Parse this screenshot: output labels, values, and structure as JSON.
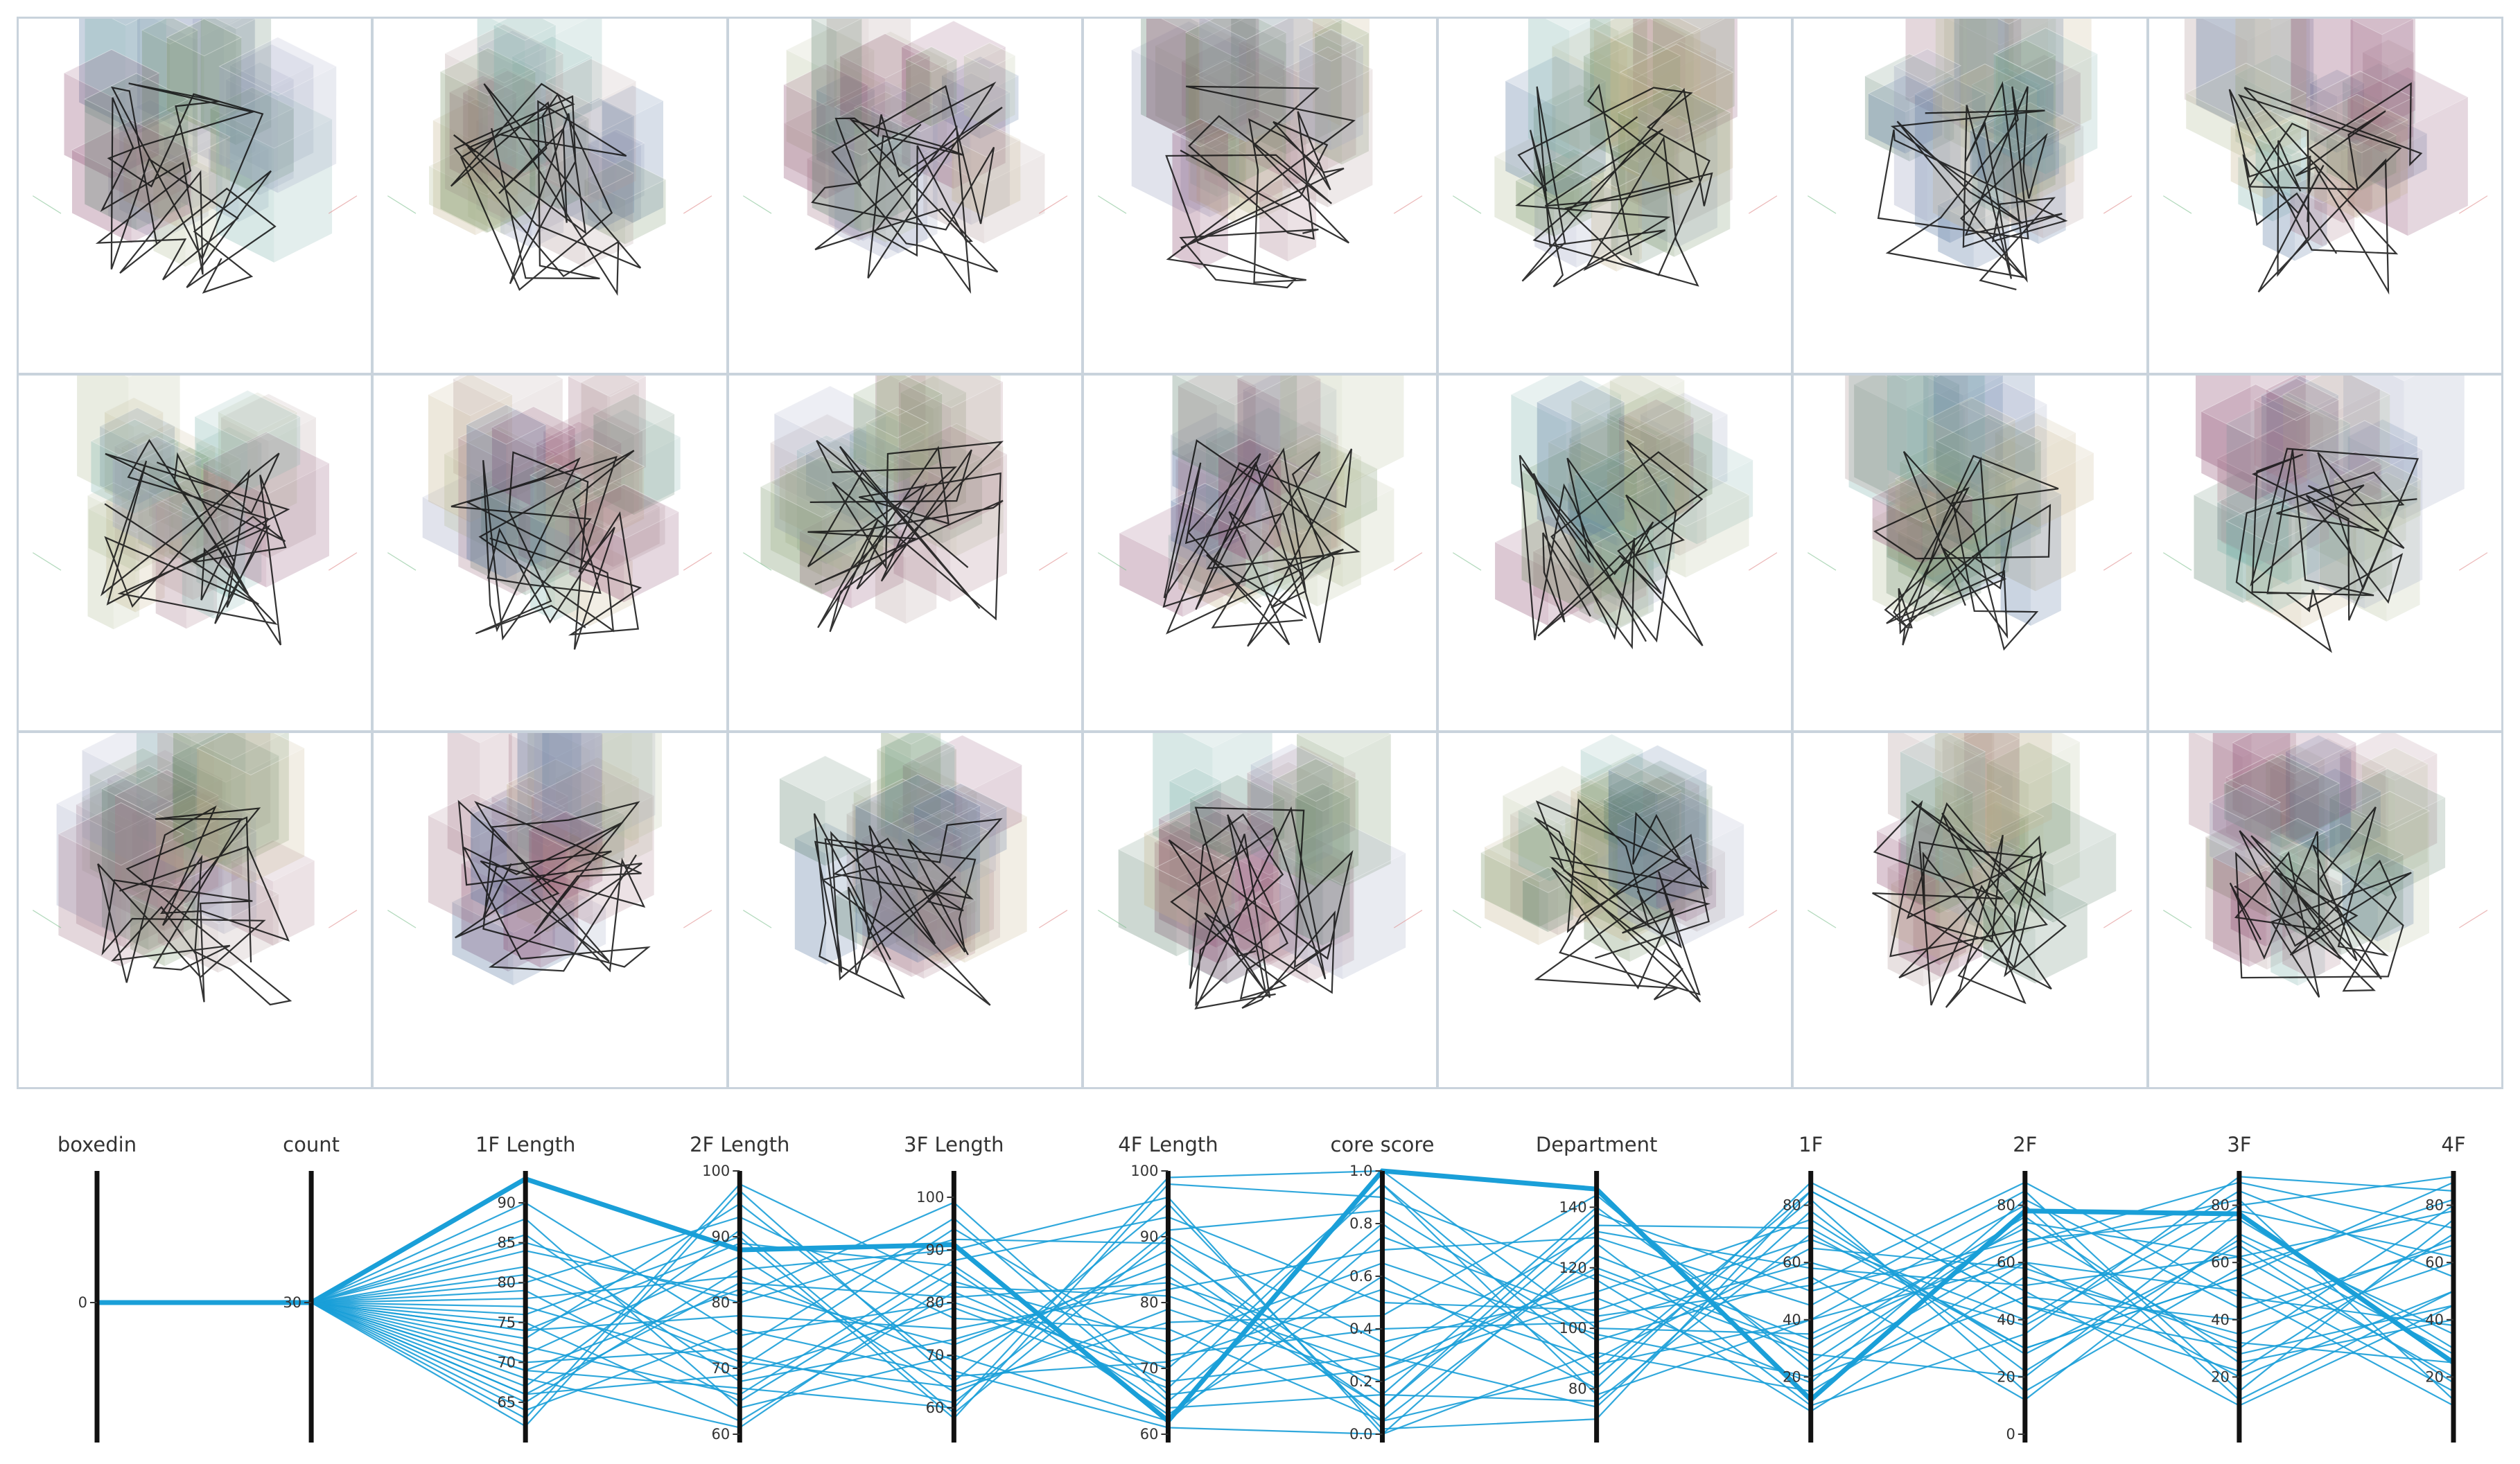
{
  "thumbnail_grid": {
    "rows": 3,
    "columns": 7,
    "count": 21
  },
  "chart_data": {
    "type": "parallel-coordinates",
    "line_color": "#1a9fd8",
    "axes": [
      {
        "name": "boxedin",
        "min": -1,
        "max": 1,
        "ticks": [
          0
        ],
        "tick_labels": [
          "0"
        ]
      },
      {
        "name": "count",
        "min": 29,
        "max": 31,
        "ticks": [
          30
        ],
        "tick_labels": [
          "30"
        ]
      },
      {
        "name": "1F Length",
        "min": 61,
        "max": 94,
        "ticks": [
          65,
          70,
          75,
          80,
          85,
          90
        ],
        "tick_labels": [
          "65",
          "70",
          "75",
          "80",
          "85",
          "90"
        ]
      },
      {
        "name": "2F Length",
        "min": 60,
        "max": 100,
        "ticks": [
          60,
          70,
          80,
          90,
          100
        ],
        "tick_labels": [
          "60",
          "70",
          "80",
          "90",
          "100"
        ]
      },
      {
        "name": "3F Length",
        "min": 55,
        "max": 105,
        "ticks": [
          60,
          70,
          80,
          90,
          100
        ],
        "tick_labels": [
          "60",
          "70",
          "80",
          "90",
          "100"
        ]
      },
      {
        "name": "4F Length",
        "min": 60,
        "max": 100,
        "ticks": [
          60,
          70,
          80,
          90,
          100
        ],
        "tick_labels": [
          "60",
          "70",
          "80",
          "90",
          "100"
        ]
      },
      {
        "name": "core score",
        "min": 0,
        "max": 1,
        "ticks": [
          0,
          0.2,
          0.4,
          0.6,
          0.8,
          1
        ],
        "tick_labels": [
          "0.0",
          "0.2",
          "0.4",
          "0.6",
          "0.8",
          "1.0"
        ]
      },
      {
        "name": "Department",
        "min": 65,
        "max": 152,
        "ticks": [
          80,
          100,
          120,
          140
        ],
        "tick_labels": [
          "80",
          "100",
          "120",
          "140"
        ]
      },
      {
        "name": "1F",
        "min": 0,
        "max": 92,
        "ticks": [
          20,
          40,
          60,
          80
        ],
        "tick_labels": [
          "20",
          "40",
          "60",
          "80"
        ]
      },
      {
        "name": "2F",
        "min": 0,
        "max": 92,
        "ticks": [
          0,
          20,
          40,
          60,
          80
        ],
        "tick_labels": [
          "0",
          "20",
          "40",
          "60",
          "80"
        ]
      },
      {
        "name": "3F",
        "min": 0,
        "max": 92,
        "ticks": [
          20,
          40,
          60,
          80
        ],
        "tick_labels": [
          "20",
          "40",
          "60",
          "80"
        ]
      },
      {
        "name": "4F",
        "min": 0,
        "max": 92,
        "ticks": [
          20,
          40,
          60,
          80
        ],
        "tick_labels": [
          "20",
          "40",
          "60",
          "80"
        ]
      }
    ],
    "highlighted_record": [
      0,
      30,
      93,
      88,
      91,
      62,
      1.0,
      146,
      12,
      78,
      77,
      25
    ],
    "records": [
      [
        0,
        30,
        93,
        88,
        91,
        62,
        1.0,
        146,
        12,
        78,
        77,
        25
      ],
      [
        0,
        30,
        62,
        97,
        65,
        95,
        0.02,
        70,
        85,
        45,
        30,
        80
      ],
      [
        0,
        30,
        90,
        75,
        80,
        70,
        0.95,
        88,
        40,
        60,
        20,
        50
      ],
      [
        0,
        30,
        86,
        68,
        73,
        84,
        0.1,
        134,
        72,
        30,
        55,
        15
      ],
      [
        0,
        30,
        84,
        81,
        99,
        66,
        0.25,
        110,
        18,
        82,
        44,
        66
      ],
      [
        0,
        30,
        82,
        72,
        61,
        91,
        0.85,
        96,
        55,
        12,
        70,
        35
      ],
      [
        0,
        30,
        80,
        93,
        77,
        76,
        0.05,
        124,
        33,
        67,
        88,
        72
      ],
      [
        0,
        30,
        79,
        65,
        86,
        63,
        0.6,
        80,
        88,
        50,
        10,
        45
      ],
      [
        0,
        30,
        78,
        84,
        69,
        88,
        0.15,
        140,
        25,
        74,
        62,
        20
      ],
      [
        0,
        30,
        77,
        70,
        94,
        72,
        0.4,
        102,
        60,
        38,
        80,
        90
      ],
      [
        0,
        30,
        76,
        90,
        58,
        98,
        0.9,
        116,
        8,
        55,
        35,
        60
      ],
      [
        0,
        30,
        75,
        62,
        82,
        68,
        0.3,
        74,
        78,
        22,
        68,
        28
      ],
      [
        0,
        30,
        74,
        78,
        75,
        82,
        0.7,
        130,
        45,
        85,
        15,
        75
      ],
      [
        0,
        30,
        73,
        95,
        67,
        61,
        0.0,
        92,
        15,
        60,
        50,
        10
      ],
      [
        0,
        30,
        72,
        66,
        88,
        93,
        0.5,
        106,
        68,
        40,
        85,
        55
      ],
      [
        0,
        30,
        71,
        87,
        63,
        79,
        0.2,
        120,
        30,
        76,
        25,
        40
      ],
      [
        0,
        30,
        70,
        73,
        96,
        65,
        0.8,
        84,
        82,
        15,
        58,
        82
      ],
      [
        0,
        30,
        69,
        82,
        72,
        86,
        0.1,
        138,
        50,
        68,
        75,
        30
      ],
      [
        0,
        30,
        68,
        61,
        84,
        74,
        0.65,
        98,
        20,
        48,
        40,
        68
      ],
      [
        0,
        30,
        67,
        91,
        59,
        90,
        0.35,
        112,
        75,
        28,
        66,
        18
      ],
      [
        0,
        30,
        66,
        69,
        79,
        67,
        0.95,
        78,
        40,
        80,
        12,
        50
      ],
      [
        0,
        30,
        65,
        85,
        90,
        96,
        0.0,
        128,
        10,
        35,
        90,
        85
      ],
      [
        0,
        30,
        64,
        76,
        66,
        71,
        0.55,
        90,
        65,
        58,
        32,
        25
      ],
      [
        0,
        30,
        63,
        98,
        83,
        81,
        0.25,
        118,
        28,
        20,
        78,
        62
      ],
      [
        0,
        30,
        88,
        64,
        70,
        62,
        0.75,
        104,
        52,
        88,
        48,
        38
      ],
      [
        0,
        30,
        85,
        80,
        92,
        89,
        0.05,
        86,
        85,
        45,
        22,
        70
      ],
      [
        0,
        30,
        81,
        71,
        64,
        77,
        0.45,
        144,
        22,
        65,
        82,
        12
      ],
      [
        0,
        30,
        74,
        89,
        87,
        64,
        0.15,
        76,
        70,
        30,
        55,
        88
      ],
      [
        0,
        30,
        69,
        67,
        60,
        99,
        1.0,
        100,
        35,
        72,
        28,
        45
      ],
      [
        0,
        30,
        66,
        83,
        81,
        83,
        0.3,
        132,
        58,
        52,
        62,
        78
      ]
    ]
  }
}
